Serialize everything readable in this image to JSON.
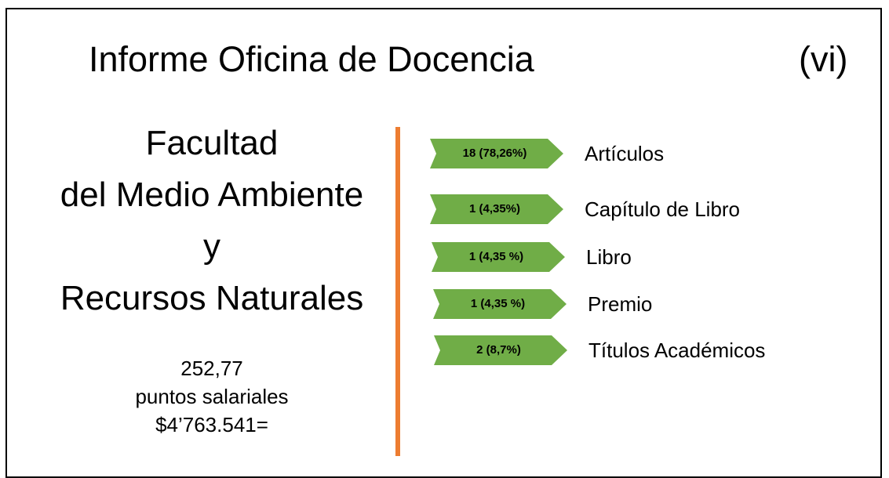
{
  "header": {
    "title": "Informe Oficina de Docencia",
    "page": "(vi)"
  },
  "faculty": {
    "lines": [
      "Facultad",
      "del Medio Ambiente",
      "y",
      "Recursos Naturales"
    ]
  },
  "stats": {
    "lines": [
      "252,77",
      "puntos salariales",
      "$4’763.541="
    ]
  },
  "items": [
    {
      "label": "18 (78,26%)",
      "name": "Artículos"
    },
    {
      "label": "1 (4,35%)",
      "name": "Capítulo de Libro"
    },
    {
      "label": "1 (4,35 %)",
      "name": "Libro"
    },
    {
      "label": "1 (4,35 %)",
      "name": "Premio"
    },
    {
      "label": "2 (8,7%)",
      "name": "Títulos Académicos"
    }
  ]
}
